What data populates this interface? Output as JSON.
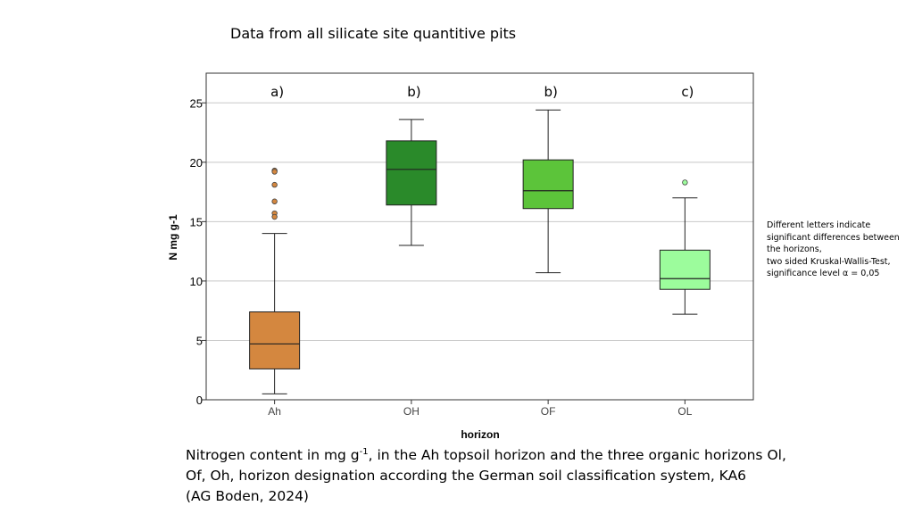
{
  "slide_title": "Data from all silicate site quantitive pits",
  "note_lines": [
    "Different letters indicate",
    "significant differences between",
    "the horizons,",
    "two sided Kruskal-Wallis-Test,",
    "significance level α = 0,05"
  ],
  "caption": {
    "line1_before": "Nitrogen content in mg g",
    "line1_sup": "-1",
    "line1_after": ", in the Ah topsoil horizon and the three organic horizons Ol,",
    "line2": "Of, Oh, horizon designation according the German soil classification system, KA6",
    "line3": "(AG Boden, 2024)"
  },
  "chart_data": {
    "type": "boxplot",
    "xlabel": "horizon",
    "ylabel": "N mg g-1",
    "ylim": [
      0,
      27.5
    ],
    "yticks": [
      0,
      5,
      10,
      15,
      20,
      25
    ],
    "grid": "horizontal",
    "categories": [
      "Ah",
      "OH",
      "OF",
      "OL"
    ],
    "boxes": [
      {
        "category": "Ah",
        "letter": "a)",
        "color": "#d4873f",
        "min": 0.5,
        "q1": 2.6,
        "median": 4.7,
        "q3": 7.4,
        "max": 14.0,
        "outliers": [
          19.3,
          19.2,
          18.1,
          16.7,
          15.7,
          15.4
        ]
      },
      {
        "category": "OH",
        "letter": "b)",
        "color": "#2a8a2a",
        "min": 13.0,
        "q1": 16.4,
        "median": 19.4,
        "q3": 21.8,
        "max": 23.6,
        "outliers": []
      },
      {
        "category": "OF",
        "letter": "b)",
        "color": "#5cc43a",
        "min": 10.7,
        "q1": 16.1,
        "median": 17.6,
        "q3": 20.2,
        "max": 24.4,
        "outliers": []
      },
      {
        "category": "OL",
        "letter": "c)",
        "color": "#9cfc9c",
        "min": 7.2,
        "q1": 9.3,
        "median": 10.2,
        "q3": 12.6,
        "max": 17.0,
        "outliers": [
          18.3
        ]
      }
    ]
  }
}
